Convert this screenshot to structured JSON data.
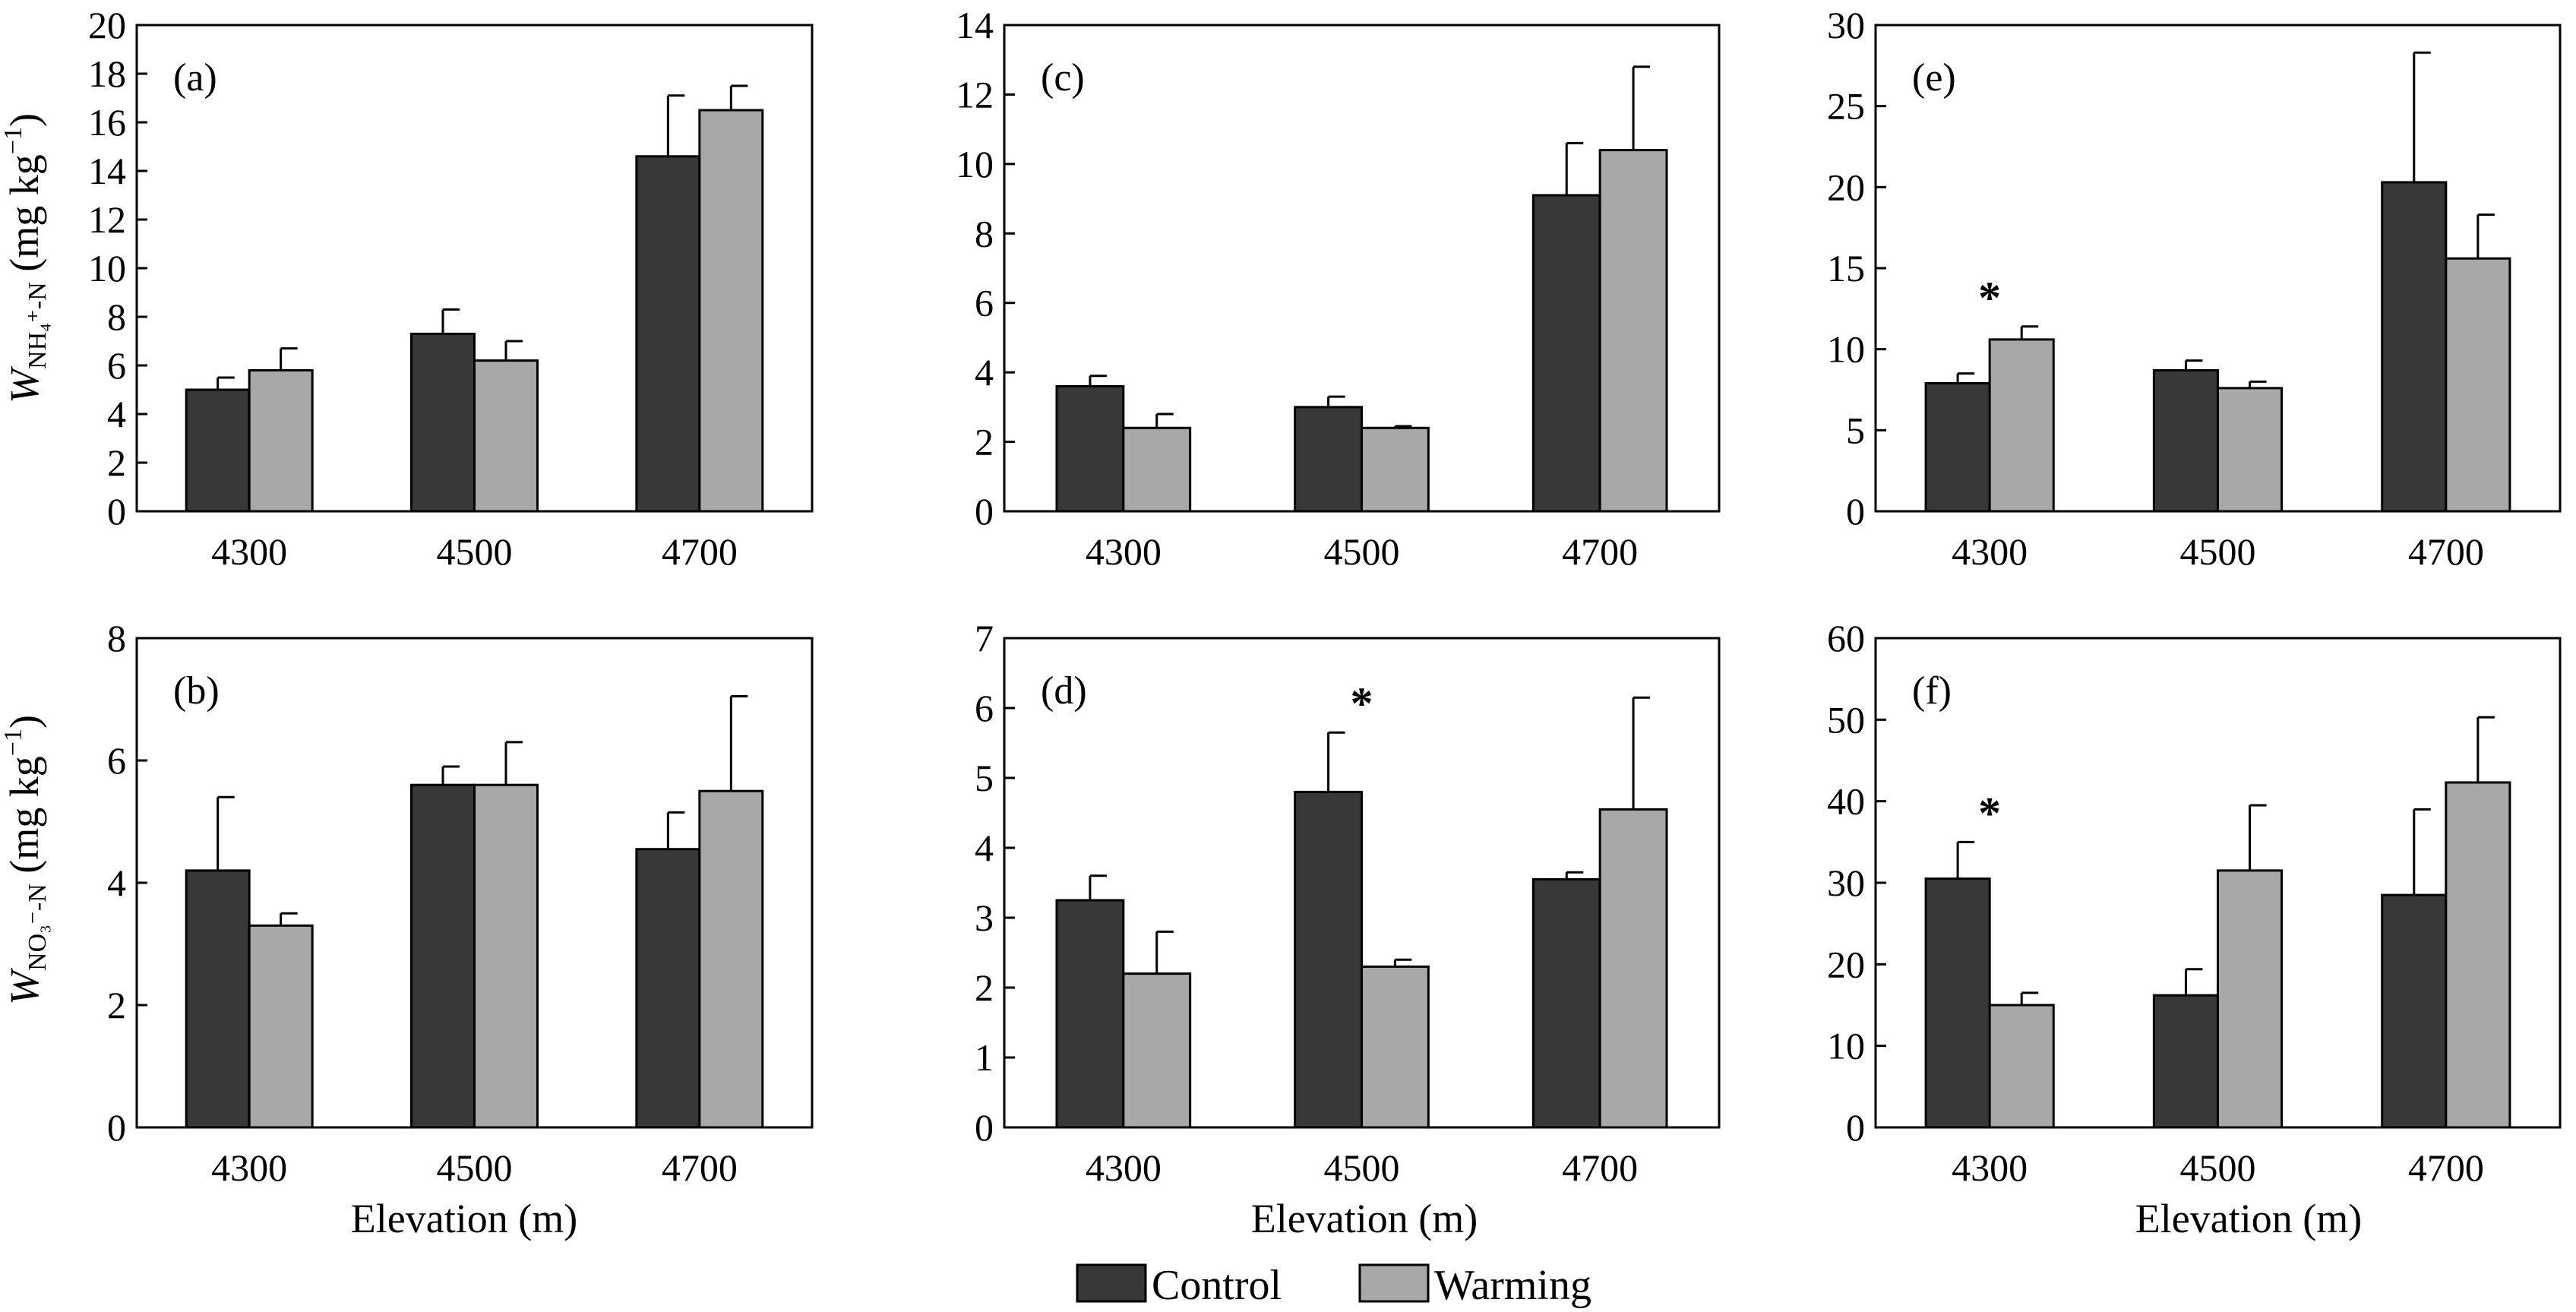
{
  "colors": {
    "control": "#383838",
    "warming": "#a8a8a8"
  },
  "legend": {
    "control_label": "Control",
    "warming_label": "Warming"
  },
  "y_titles": {
    "top": {
      "letter": "W",
      "sub": "NH₄⁺-N",
      "unit": " (mg kg",
      "exp": "−1",
      "close": ")"
    },
    "bottom": {
      "letter": "W",
      "sub": "NO₃⁻-N",
      "unit": " (mg kg",
      "exp": "−1",
      "close": ")"
    }
  },
  "x_title": "Elevation (m)",
  "chart_data": [
    {
      "label": "(a)",
      "type": "bar",
      "categories": [
        "4300",
        "4500",
        "4700"
      ],
      "ylim": [
        0,
        20
      ],
      "yticks": [
        0,
        2,
        4,
        6,
        8,
        10,
        12,
        14,
        16,
        18,
        20
      ],
      "series": [
        {
          "name": "Control",
          "values": [
            5.0,
            7.3,
            14.6
          ],
          "errors": [
            0.5,
            1.0,
            2.5
          ]
        },
        {
          "name": "Warming",
          "values": [
            5.8,
            6.2,
            16.5
          ],
          "errors": [
            0.9,
            0.8,
            1.0
          ]
        }
      ],
      "significant": []
    },
    {
      "label": "(c)",
      "type": "bar",
      "categories": [
        "4300",
        "4500",
        "4700"
      ],
      "ylim": [
        0,
        14
      ],
      "yticks": [
        0,
        2,
        4,
        6,
        8,
        10,
        12,
        14
      ],
      "series": [
        {
          "name": "Control",
          "values": [
            3.6,
            3.0,
            9.1
          ],
          "errors": [
            0.3,
            0.3,
            1.5
          ]
        },
        {
          "name": "Warming",
          "values": [
            2.4,
            2.4,
            10.4
          ],
          "errors": [
            0.4,
            0.05,
            2.4
          ]
        }
      ],
      "significant": []
    },
    {
      "label": "(e)",
      "type": "bar",
      "categories": [
        "4300",
        "4500",
        "4700"
      ],
      "ylim": [
        0,
        30
      ],
      "yticks": [
        0,
        5,
        10,
        15,
        20,
        25,
        30
      ],
      "series": [
        {
          "name": "Control",
          "values": [
            7.9,
            8.7,
            20.3
          ],
          "errors": [
            0.6,
            0.6,
            8.0
          ]
        },
        {
          "name": "Warming",
          "values": [
            10.6,
            7.6,
            15.6
          ],
          "errors": [
            0.8,
            0.4,
            2.7
          ]
        }
      ],
      "significant": [
        0
      ]
    },
    {
      "label": "(b)",
      "type": "bar",
      "categories": [
        "4300",
        "4500",
        "4700"
      ],
      "ylim": [
        0,
        8
      ],
      "yticks": [
        0,
        2,
        4,
        6,
        8
      ],
      "series": [
        {
          "name": "Control",
          "values": [
            4.2,
            5.6,
            4.55
          ],
          "errors": [
            1.2,
            0.3,
            0.6
          ]
        },
        {
          "name": "Warming",
          "values": [
            3.3,
            5.6,
            5.5
          ],
          "errors": [
            0.2,
            0.7,
            1.55
          ]
        }
      ],
      "significant": []
    },
    {
      "label": "(d)",
      "type": "bar",
      "categories": [
        "4300",
        "4500",
        "4700"
      ],
      "ylim": [
        0,
        7
      ],
      "yticks": [
        0,
        1,
        2,
        3,
        4,
        5,
        6,
        7
      ],
      "series": [
        {
          "name": "Control",
          "values": [
            3.25,
            4.8,
            3.55
          ],
          "errors": [
            0.35,
            0.85,
            0.1
          ]
        },
        {
          "name": "Warming",
          "values": [
            2.2,
            2.3,
            4.55
          ],
          "errors": [
            0.6,
            0.1,
            1.6
          ]
        }
      ],
      "significant": [
        1
      ]
    },
    {
      "label": "(f)",
      "type": "bar",
      "categories": [
        "4300",
        "4500",
        "4700"
      ],
      "ylim": [
        0,
        60
      ],
      "yticks": [
        0,
        10,
        20,
        30,
        40,
        50,
        60
      ],
      "series": [
        {
          "name": "Control",
          "values": [
            30.5,
            16.2,
            28.5
          ],
          "errors": [
            4.5,
            3.2,
            10.5
          ]
        },
        {
          "name": "Warming",
          "values": [
            15.0,
            31.5,
            42.3
          ],
          "errors": [
            1.5,
            8.0,
            8.0
          ]
        }
      ],
      "significant": [
        0
      ]
    }
  ]
}
